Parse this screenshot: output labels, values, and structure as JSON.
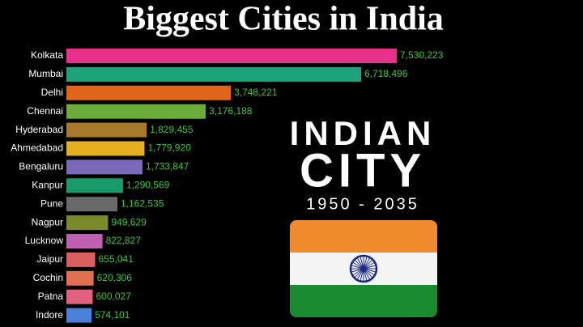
{
  "chart_data": {
    "type": "bar",
    "orientation": "horizontal",
    "title": "Biggest Cities in India",
    "categories": [
      "Kolkata",
      "Mumbai",
      "Delhi",
      "Chennai",
      "Hyderabad",
      "Ahmedabad",
      "Bengaluru",
      "Kanpur",
      "Pune",
      "Nagpur",
      "Lucknow",
      "Jaipur",
      "Cochin",
      "Patna",
      "Indore"
    ],
    "series": [
      {
        "values": [
          7530223,
          6718496,
          3748221,
          3176188,
          1829455,
          1779920,
          1733847,
          1290569,
          1162535,
          949629,
          822827,
          655041,
          620306,
          600027,
          574101
        ],
        "value_labels": [
          "7,530,223",
          "6,718,496",
          "3,748,221",
          "3,176,188",
          "1,829,455",
          "1,779,920",
          "1,733,847",
          "1,290,569",
          "1,162,535",
          "949,629",
          "822,827",
          "655,041",
          "620,306",
          "600,027",
          "574,101"
        ],
        "colors": [
          "#e8318a",
          "#1fa37a",
          "#e0641a",
          "#6aad3a",
          "#a87a2e",
          "#e8b020",
          "#7a6ab8",
          "#1a9a6a",
          "#6a6a6a",
          "#7a8a2a",
          "#c060b0",
          "#d86060",
          "#e07050",
          "#e06080",
          "#4a80d8"
        ]
      }
    ],
    "value_label_color": "#3ec43e",
    "annotations": [
      "INDIAN",
      "CITY",
      "1950 - 2035"
    ]
  }
}
